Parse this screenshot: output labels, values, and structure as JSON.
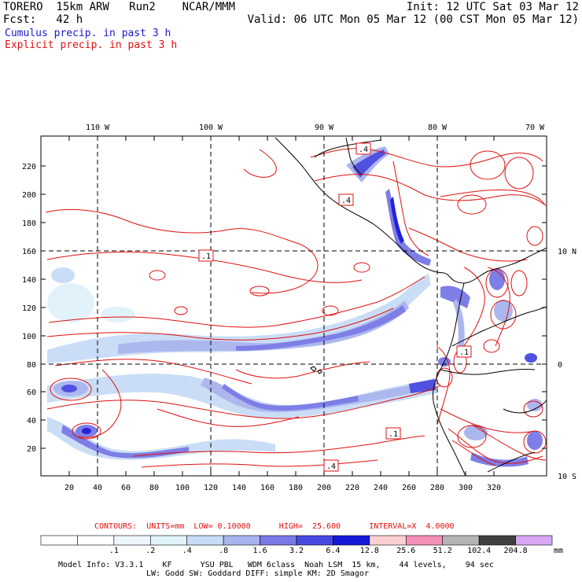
{
  "header": {
    "line1_left": "TORERO  15km ARW   Run2    NCAR/MMM",
    "line1_right": "Init: 12 UTC Sat 03 Mar 12",
    "line2_left": "Fcst:   42 h",
    "line2_right": "Valid: 06 UTC Mon 05 Mar 12 (00 CST Mon 05 Mar 12)",
    "field1": "Cumulus precip. in past 3 h",
    "field2": "Explicit precip. in past 3 h"
  },
  "colors": {
    "cumulus_title": "#1a1ad0",
    "explicit_title": "#e01010",
    "contour": "#e01010"
  },
  "axes": {
    "lon_labels": [
      "110 W",
      "100 W",
      "90 W",
      "80 W",
      "70 W"
    ],
    "lat_labels": [
      "10 N",
      "0",
      "10 S"
    ],
    "x_ticks": [
      "20",
      "40",
      "60",
      "80",
      "100",
      "120",
      "140",
      "160",
      "180",
      "200",
      "220",
      "240",
      "260",
      "280",
      "300",
      "320"
    ],
    "y_ticks": [
      "20",
      "40",
      "60",
      "80",
      "100",
      "120",
      "140",
      "160",
      "180",
      "200",
      "220"
    ]
  },
  "contour_labels": [
    ".4",
    ".4",
    ".1",
    ".4",
    ".1",
    ".1"
  ],
  "contour_info": "CONTOURS:  UNITS=mm  LOW= 0.10000      HIGH=  25.600      INTERVAL=X  4.0000",
  "colorbar": {
    "labels": [
      ".1",
      ".2",
      ".4",
      ".8",
      "1.6",
      "3.2",
      "6.4",
      "12.8",
      "25.6",
      "51.2",
      "102.4",
      "204.8"
    ],
    "unit": "mm",
    "colors": [
      "#ffffff",
      "#ffffff",
      "#eef6ff",
      "#e0f2fa",
      "#c8dcf6",
      "#a8b4ee",
      "#7878e6",
      "#4848e0",
      "#1818d8",
      "#fcd0d0",
      "#f490b8",
      "#b4b4b4",
      "#404040",
      "#d8a8f4"
    ]
  },
  "model_info": {
    "line1": "Model Info: V3.3.1    KF      YSU PBL   WDM 6class  Noah LSM  15 km,    44 levels,    94 sec",
    "line2": "LW: Godd SW: Goddard DIFF: simple KM: 2D Smagor"
  }
}
